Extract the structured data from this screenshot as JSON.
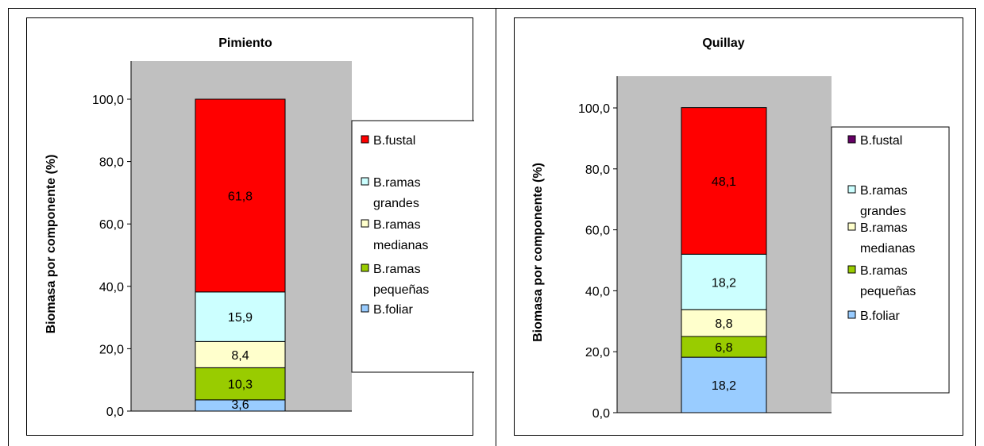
{
  "chart_data": [
    {
      "type": "bar",
      "stacked": true,
      "title": "Pimiento",
      "ylabel": "Biomasa por componente (%)",
      "xlabel": "",
      "ylim": [
        0,
        100
      ],
      "yticks": [
        "0,0",
        "20,0",
        "40,0",
        "60,0",
        "80,0",
        "100,0"
      ],
      "grid": false,
      "legend_position": "right",
      "series": [
        {
          "name": "B.foliar",
          "values": [
            3.6
          ],
          "label": "3,6",
          "color": "#99ccff"
        },
        {
          "name": "B.ramas pequeñas",
          "values": [
            10.3
          ],
          "label": "10,3",
          "color": "#99cc00"
        },
        {
          "name": "B.ramas medianas",
          "values": [
            8.4
          ],
          "label": "8,4",
          "color": "#ffffcc"
        },
        {
          "name": "B.ramas grandes",
          "values": [
            15.9
          ],
          "label": "15,9",
          "color": "#ccffff"
        },
        {
          "name": "B.fustal",
          "values": [
            61.8
          ],
          "label": "61,8",
          "color": "#ff0000"
        }
      ],
      "legend": [
        {
          "lines": [
            "B.fustal"
          ],
          "color": "#ff0000"
        },
        {
          "lines": [
            "B.ramas",
            "grandes"
          ],
          "color": "#ccffff"
        },
        {
          "lines": [
            "B.ramas",
            "medianas"
          ],
          "color": "#ffffcc"
        },
        {
          "lines": [
            "B.ramas",
            "pequeñas"
          ],
          "color": "#99cc00"
        },
        {
          "lines": [
            "B.foliar"
          ],
          "color": "#99ccff"
        }
      ]
    },
    {
      "type": "bar",
      "stacked": true,
      "title": "Quillay",
      "ylabel": "Biomasa por componente (%)",
      "xlabel": "",
      "ylim": [
        0,
        100
      ],
      "yticks": [
        "0,0",
        "20,0",
        "40,0",
        "60,0",
        "80,0",
        "100,0"
      ],
      "grid": false,
      "legend_position": "right",
      "series": [
        {
          "name": "B.foliar",
          "values": [
            18.2
          ],
          "label": "18,2",
          "color": "#99ccff"
        },
        {
          "name": "B.ramas pequeñas",
          "values": [
            6.8
          ],
          "label": "6,8",
          "color": "#99cc00"
        },
        {
          "name": "B.ramas medianas",
          "values": [
            8.8
          ],
          "label": "8,8",
          "color": "#ffffcc"
        },
        {
          "name": "B.ramas grandes",
          "values": [
            18.2
          ],
          "label": "18,2",
          "color": "#ccffff"
        },
        {
          "name": "B.fustal",
          "values": [
            48.1
          ],
          "label": "48,1",
          "color": "#ff0000"
        }
      ],
      "legend": [
        {
          "lines": [
            "B.fustal"
          ],
          "color": "#660066"
        },
        {
          "lines": [
            "B.ramas",
            "grandes"
          ],
          "color": "#ccffff"
        },
        {
          "lines": [
            "B.ramas",
            "medianas"
          ],
          "color": "#ffffcc"
        },
        {
          "lines": [
            "B.ramas",
            "pequeñas"
          ],
          "color": "#99cc00"
        },
        {
          "lines": [
            "B.foliar"
          ],
          "color": "#99ccff"
        }
      ]
    }
  ]
}
